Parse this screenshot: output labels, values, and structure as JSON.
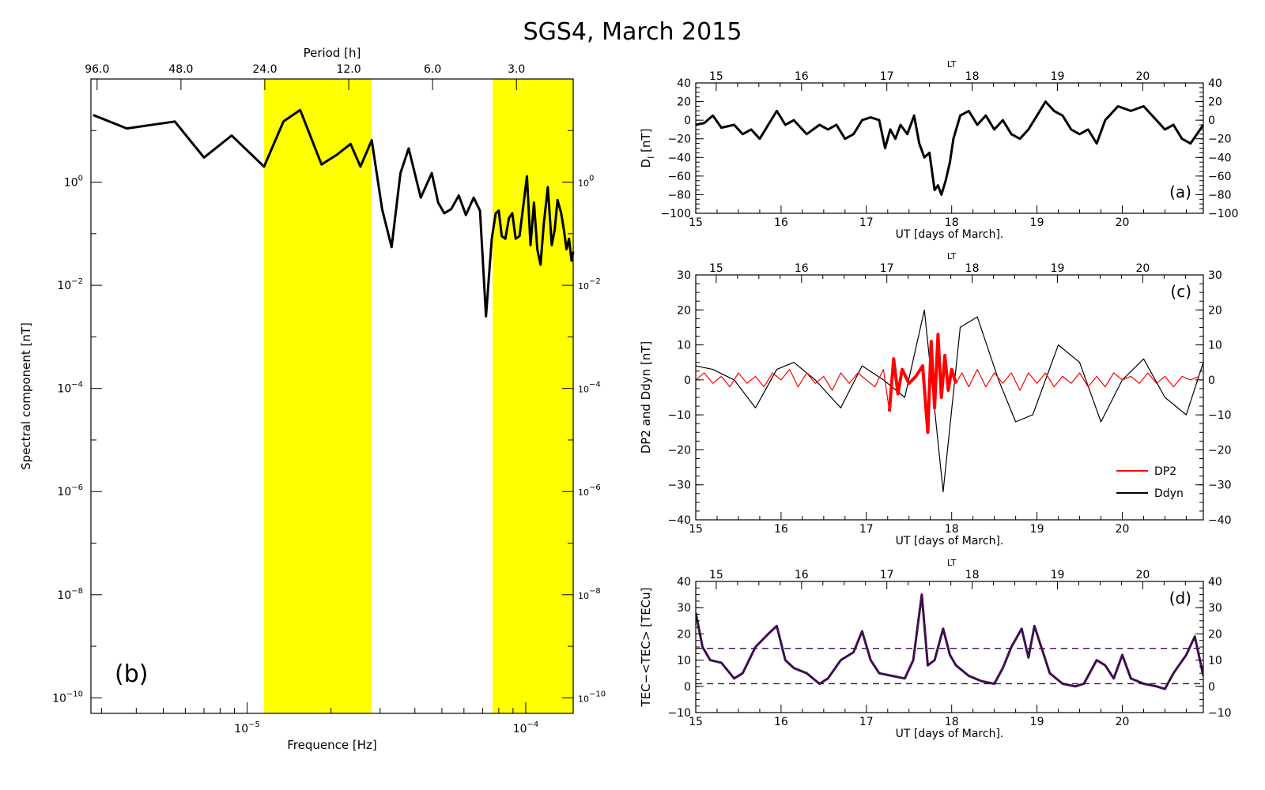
{
  "title": "SGS4, March 2015",
  "colors": {
    "highlight": "#ffff00",
    "black": "#000000",
    "red": "#ff0000",
    "purple": "#3d0f4f"
  },
  "chart_data": [
    {
      "id": "b",
      "type": "line",
      "panel_label": "(b)",
      "xlabel": "Frequence [Hz]",
      "ylabel": "Spectral component [nT]",
      "top_label": "Period [h]",
      "xscale": "log",
      "yscale": "log",
      "xlim": [
        2.75e-06,
        0.000148
      ],
      "ylim": [
        5e-11,
        100.0
      ],
      "x_ticks": [
        {
          "v": 1e-05,
          "t": "10",
          "e": "−5"
        },
        {
          "v": 0.0001,
          "t": "10",
          "e": "−4"
        }
      ],
      "y_ticks": [
        {
          "v": 1,
          "t": "10",
          "e": "0"
        },
        {
          "v": 0.01,
          "t": "10",
          "e": "−2"
        },
        {
          "v": 0.0001,
          "t": "10",
          "e": "−4"
        },
        {
          "v": 1e-06,
          "t": "10",
          "e": "−6"
        },
        {
          "v": 1e-08,
          "t": "10",
          "e": "−8"
        },
        {
          "v": 1e-10,
          "t": "10",
          "e": "−10"
        }
      ],
      "top_ticks": [
        {
          "v": 2.894e-06,
          "t": "96.0"
        },
        {
          "v": 5.787e-06,
          "t": "48.0"
        },
        {
          "v": 1.157e-05,
          "t": "24.0"
        },
        {
          "v": 2.315e-05,
          "t": "12.0"
        },
        {
          "v": 4.63e-05,
          "t": "6.0"
        },
        {
          "v": 9.259e-05,
          "t": "3.0"
        }
      ],
      "bands": [
        [
          1.15e-05,
          2.8e-05
        ],
        [
          7.6e-05,
          0.000148
        ]
      ],
      "series": [
        {
          "color": "#000000",
          "x": [
            2.8e-06,
            3.7e-06,
            5.5e-06,
            7e-06,
            8.8e-06,
            1.15e-05,
            1.35e-05,
            1.55e-05,
            1.85e-05,
            2.1e-05,
            2.35e-05,
            2.55e-05,
            2.8e-05,
            3.05e-05,
            3.3e-05,
            3.55e-05,
            3.8e-05,
            4.2e-05,
            4.6e-05,
            4.85e-05,
            5.1e-05,
            5.4e-05,
            5.75e-05,
            6.1e-05,
            6.5e-05,
            6.85e-05,
            7.2e-05,
            7.55e-05,
            7.8e-05,
            8e-05,
            8.2e-05,
            8.45e-05,
            8.7e-05,
            8.95e-05,
            9.2e-05,
            9.5e-05,
            9.8e-05,
            0.000101,
            0.000104,
            0.000107,
            0.00011,
            0.000113,
            0.000116,
            0.00012,
            0.000124,
            0.000127,
            0.00013,
            0.000134,
            0.000137,
            0.00014,
            0.000143,
            0.000146,
            0.000148
          ],
          "y": [
            20,
            11,
            15,
            3.0,
            8.0,
            2.0,
            15,
            25,
            2.2,
            3.4,
            5.5,
            2.0,
            6.5,
            0.3,
            0.055,
            1.5,
            4.5,
            0.5,
            1.5,
            0.4,
            0.25,
            0.3,
            0.55,
            0.23,
            0.5,
            0.28,
            0.0025,
            0.08,
            0.25,
            0.28,
            0.09,
            0.08,
            0.2,
            0.25,
            0.08,
            0.09,
            0.35,
            1.3,
            0.06,
            0.4,
            0.05,
            0.025,
            0.15,
            0.8,
            0.06,
            0.12,
            0.45,
            0.25,
            0.12,
            0.05,
            0.08,
            0.03,
            0.045
          ]
        }
      ]
    },
    {
      "id": "a",
      "type": "line",
      "panel_label": "(a)",
      "xlabel": "UT [days of March].",
      "ylabel_main": "D",
      "ylabel_sub": "I",
      "ylabel_unit": " [nT]",
      "top_label": "LT",
      "xlim": [
        15,
        20.95
      ],
      "ylim": [
        -100,
        40
      ],
      "x_ticks": [
        15,
        16,
        17,
        18,
        19,
        20
      ],
      "top_ticks": [
        15,
        16,
        17,
        18,
        19,
        20
      ],
      "lt_offset": 0.24,
      "y_ticks": [
        40,
        20,
        0,
        -20,
        -40,
        -60,
        -80,
        -100
      ],
      "series": [
        {
          "color": "#000000",
          "x": [
            15.0,
            15.1,
            15.2,
            15.3,
            15.45,
            15.55,
            15.65,
            15.75,
            15.85,
            15.95,
            16.05,
            16.15,
            16.3,
            16.45,
            16.55,
            16.65,
            16.75,
            16.85,
            16.95,
            17.05,
            17.15,
            17.22,
            17.28,
            17.34,
            17.4,
            17.48,
            17.56,
            17.62,
            17.68,
            17.74,
            17.8,
            17.84,
            17.88,
            17.93,
            17.98,
            18.02,
            18.1,
            18.2,
            18.3,
            18.4,
            18.5,
            18.6,
            18.7,
            18.8,
            18.9,
            19.0,
            19.1,
            19.2,
            19.3,
            19.4,
            19.5,
            19.6,
            19.7,
            19.8,
            19.95,
            20.1,
            20.25,
            20.4,
            20.5,
            20.6,
            20.7,
            20.8,
            20.95
          ],
          "y": [
            -5,
            -3,
            5,
            -8,
            -5,
            -15,
            -10,
            -20,
            -5,
            10,
            -5,
            0,
            -15,
            -5,
            -10,
            -5,
            -20,
            -15,
            0,
            3,
            0,
            -30,
            -10,
            -20,
            -5,
            -15,
            5,
            -25,
            -40,
            -35,
            -75,
            -70,
            -80,
            -65,
            -45,
            -20,
            5,
            10,
            -5,
            5,
            -10,
            0,
            -15,
            -20,
            -10,
            5,
            20,
            10,
            5,
            -10,
            -15,
            -10,
            -25,
            0,
            15,
            10,
            15,
            0,
            -10,
            -5,
            -20,
            -25,
            -5
          ]
        }
      ]
    },
    {
      "id": "c",
      "type": "line",
      "panel_label": "(c)",
      "xlabel": "UT [days of March].",
      "ylabel": "DP2 and Ddyn [nT]",
      "top_label": "LT",
      "xlim": [
        15,
        20.95
      ],
      "ylim": [
        -40,
        30
      ],
      "x_ticks": [
        15,
        16,
        17,
        18,
        19,
        20
      ],
      "top_ticks": [
        15,
        16,
        17,
        18,
        19,
        20
      ],
      "lt_offset": 0.24,
      "y_ticks": [
        30,
        20,
        10,
        0,
        -10,
        -20,
        -30,
        -40
      ],
      "legend": {
        "position": "bottom-right",
        "items": [
          {
            "name": "DP2",
            "color": "#ff0000"
          },
          {
            "name": "Ddyn",
            "color": "#000000"
          }
        ]
      },
      "series": [
        {
          "name": "Ddyn",
          "color": "#000000",
          "x": [
            15.0,
            15.2,
            15.45,
            15.7,
            15.95,
            16.15,
            16.4,
            16.7,
            16.95,
            17.2,
            17.45,
            17.68,
            17.9,
            18.1,
            18.3,
            18.55,
            18.75,
            18.95,
            19.25,
            19.5,
            19.75,
            20.0,
            20.25,
            20.5,
            20.75,
            20.95
          ],
          "y": [
            4,
            3,
            0,
            -8,
            3,
            5,
            0,
            -8,
            4,
            0,
            -5,
            20,
            -32,
            15,
            18,
            0,
            -12,
            -10,
            10,
            5,
            -12,
            0,
            6,
            -5,
            -10,
            5
          ]
        },
        {
          "name": "DP2",
          "color": "#ff0000",
          "x": [
            15.0,
            15.1,
            15.2,
            15.3,
            15.4,
            15.5,
            15.6,
            15.7,
            15.8,
            15.9,
            16.0,
            16.1,
            16.2,
            16.3,
            16.4,
            16.5,
            16.6,
            16.7,
            16.8,
            16.9,
            17.0,
            17.1,
            17.2,
            17.27,
            17.32,
            17.37,
            17.42,
            17.5,
            17.58,
            17.66,
            17.72,
            17.76,
            17.8,
            17.84,
            17.88,
            17.92,
            17.96,
            18.0,
            18.05,
            18.12,
            18.2,
            18.3,
            18.4,
            18.5,
            18.6,
            18.7,
            18.8,
            18.9,
            19.0,
            19.1,
            19.2,
            19.3,
            19.4,
            19.5,
            19.6,
            19.7,
            19.8,
            19.9,
            20.0,
            20.1,
            20.2,
            20.3,
            20.4,
            20.5,
            20.6,
            20.7,
            20.8,
            20.9
          ],
          "y": [
            0,
            2,
            -1,
            1,
            -2,
            2,
            -1,
            1,
            -2,
            2,
            0,
            3,
            -2,
            2,
            -1,
            1,
            -3,
            2,
            -1,
            2,
            0,
            -2,
            3,
            -9,
            6,
            -4,
            3,
            -1,
            1,
            4,
            -15,
            11,
            -8,
            13,
            -5,
            7,
            -3,
            3,
            -1,
            2,
            -2,
            3,
            -2,
            2,
            -1,
            2,
            -3,
            2,
            -1,
            2,
            -2,
            1,
            -1,
            2,
            -2,
            1,
            -2,
            2,
            0,
            1,
            -1,
            2,
            -1,
            1,
            -2,
            1,
            0,
            1
          ]
        }
      ]
    },
    {
      "id": "d",
      "type": "line",
      "panel_label": "(d)",
      "xlabel": "UT [days of March].",
      "ylabel": "TEC−<TEC> [TECu]",
      "top_label": "LT",
      "xlim": [
        15,
        20.95
      ],
      "ylim": [
        -10,
        40
      ],
      "x_ticks": [
        15,
        16,
        17,
        18,
        19,
        20
      ],
      "top_ticks": [
        15,
        16,
        17,
        18,
        19,
        20
      ],
      "lt_offset": 0.24,
      "y_ticks": [
        40,
        30,
        20,
        10,
        0,
        -10
      ],
      "reference_lines": [
        14.5,
        1
      ],
      "series": [
        {
          "color": "#3d0f4f",
          "x": [
            15.0,
            15.08,
            15.17,
            15.3,
            15.45,
            15.55,
            15.7,
            15.85,
            15.95,
            16.05,
            16.15,
            16.3,
            16.45,
            16.55,
            16.7,
            16.85,
            16.95,
            17.05,
            17.15,
            17.3,
            17.45,
            17.55,
            17.65,
            17.72,
            17.8,
            17.9,
            17.98,
            18.05,
            18.2,
            18.35,
            18.5,
            18.6,
            18.7,
            18.82,
            18.9,
            18.97,
            19.05,
            19.15,
            19.3,
            19.45,
            19.55,
            19.7,
            19.8,
            19.9,
            20.0,
            20.1,
            20.25,
            20.4,
            20.5,
            20.6,
            20.75,
            20.85,
            20.95
          ],
          "y": [
            28,
            15,
            10,
            9,
            3,
            5,
            15,
            20,
            23,
            10,
            7,
            5,
            1,
            3,
            10,
            13,
            21,
            10,
            5,
            4,
            3,
            10,
            35,
            8,
            10,
            22,
            12,
            8,
            4,
            2,
            1,
            7,
            15,
            22,
            11,
            23,
            15,
            5,
            1,
            0,
            1,
            10,
            8,
            3,
            12,
            3,
            1,
            0,
            -1,
            5,
            12,
            19,
            4
          ]
        }
      ]
    }
  ]
}
